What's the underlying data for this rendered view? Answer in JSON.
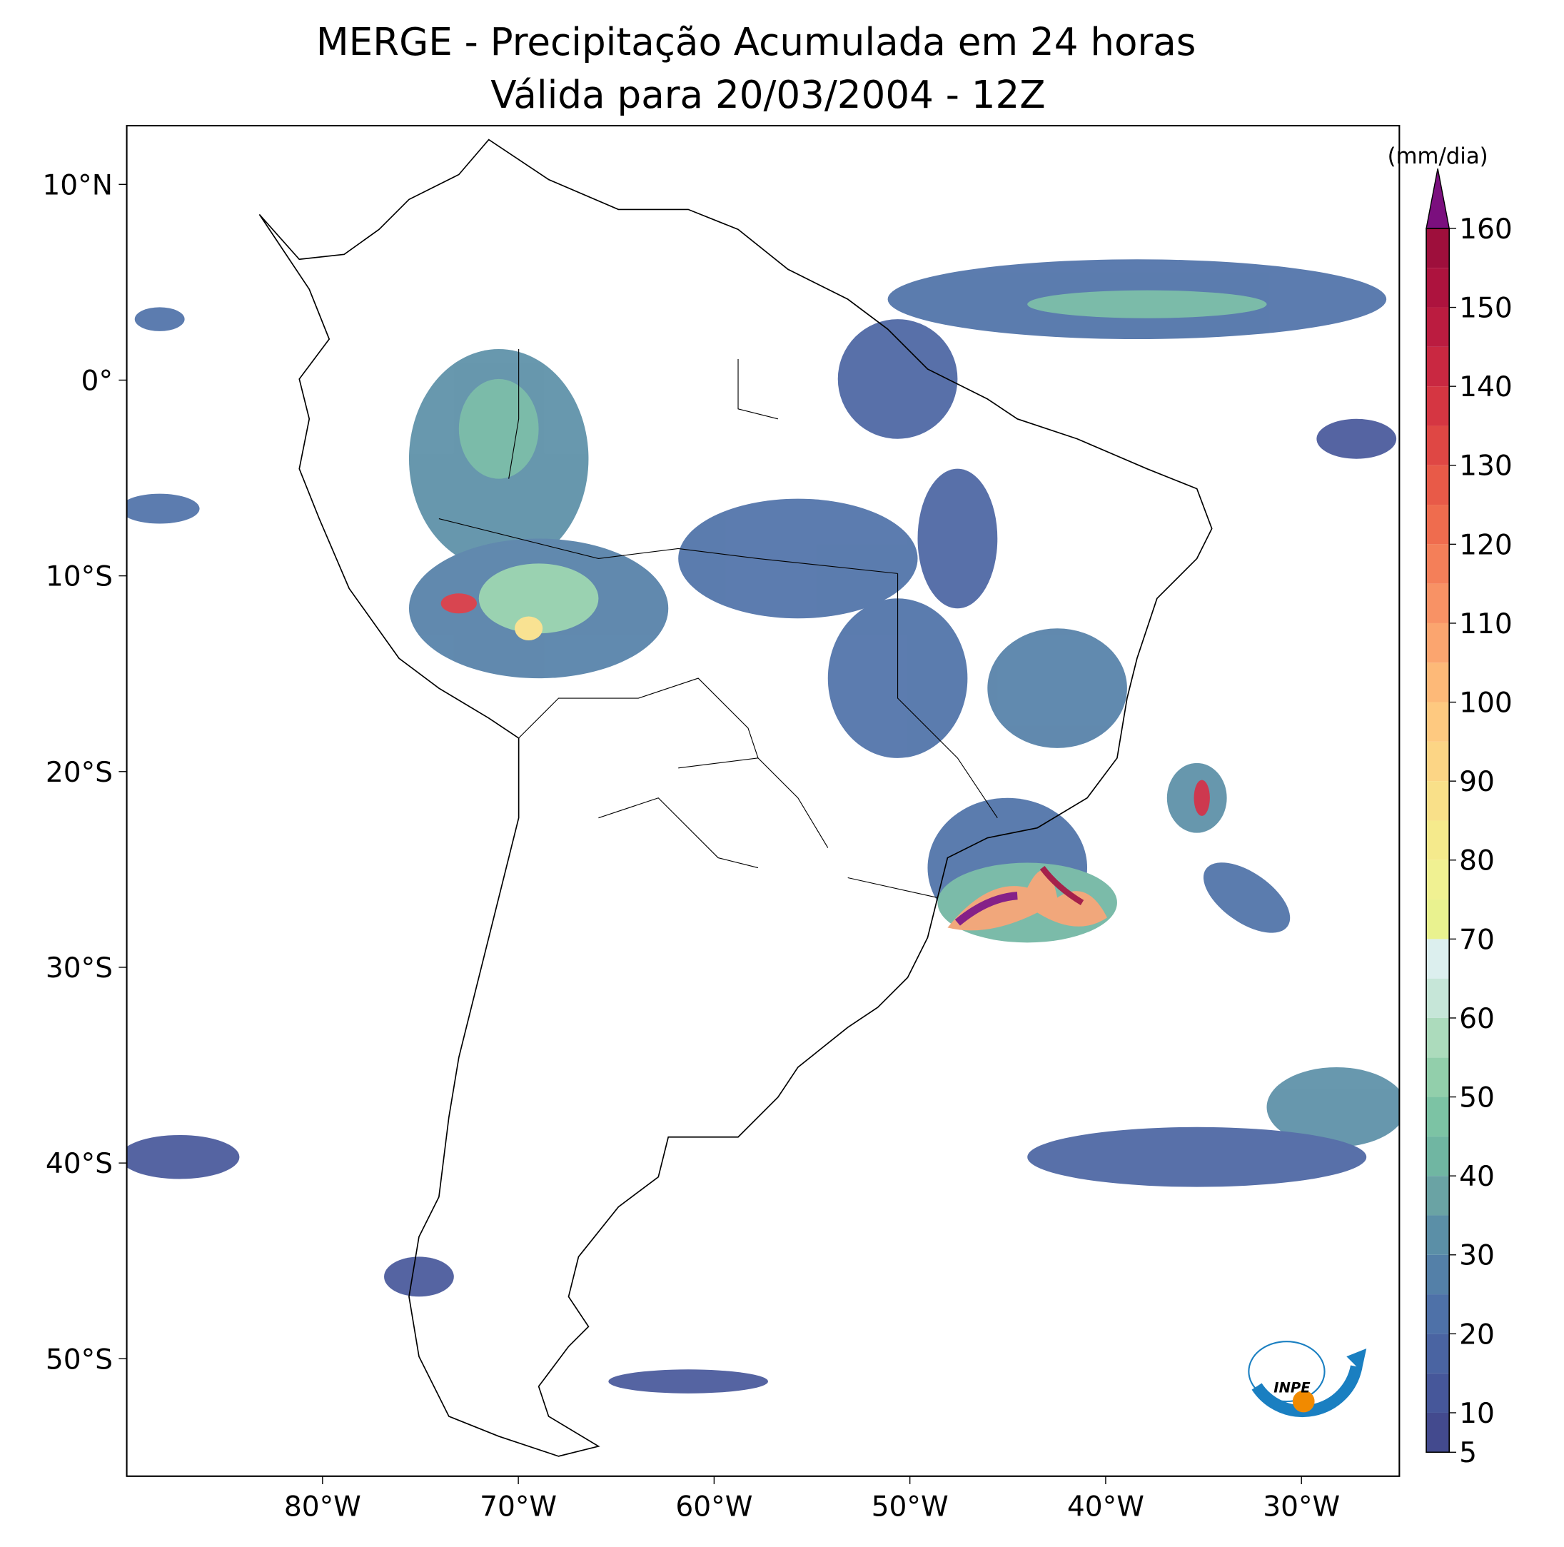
{
  "map": {
    "title": "MERGE - Precipitação Acumulada em 24 horas",
    "subtitle": "Válida para 20/03/2004 - 12Z",
    "xlim": [
      -90,
      -25
    ],
    "ylim": [
      -56,
      13
    ],
    "xticks": [
      {
        "value": -80,
        "label": "80°W"
      },
      {
        "value": -70,
        "label": "70°W"
      },
      {
        "value": -60,
        "label": "60°W"
      },
      {
        "value": -50,
        "label": "50°W"
      },
      {
        "value": -40,
        "label": "40°W"
      },
      {
        "value": -30,
        "label": "30°W"
      }
    ],
    "yticks": [
      {
        "value": 10,
        "label": "10°N"
      },
      {
        "value": 0,
        "label": "0°"
      },
      {
        "value": -10,
        "label": "10°S"
      },
      {
        "value": -20,
        "label": "20°S"
      },
      {
        "value": -30,
        "label": "30°S"
      },
      {
        "value": -40,
        "label": "40°S"
      },
      {
        "value": -50,
        "label": "50°S"
      }
    ],
    "colorbar": {
      "unit": "(mm/dia)",
      "levels": [
        5,
        10,
        15,
        20,
        25,
        30,
        35,
        40,
        45,
        50,
        55,
        60,
        65,
        70,
        75,
        80,
        85,
        90,
        95,
        100,
        105,
        110,
        115,
        120,
        125,
        130,
        135,
        140,
        145,
        150,
        155,
        160
      ],
      "colors": [
        "#434a8e",
        "#46579a",
        "#4a64a2",
        "#4e71a8",
        "#5480a8",
        "#5b8fa7",
        "#6aa3a4",
        "#70b6a2",
        "#7cc3a4",
        "#92cfab",
        "#acdbbc",
        "#c6e6d8",
        "#dcefee",
        "#e9f28f",
        "#f0f192",
        "#f5ea8c",
        "#f9e089",
        "#fcd585",
        "#fec980",
        "#fdb978",
        "#fba56f",
        "#f89265",
        "#f47f59",
        "#ef6c4e",
        "#e85a48",
        "#df4744",
        "#d53642",
        "#c92841",
        "#bb1c40",
        "#ad133e",
        "#9e0f3c"
      ],
      "extend_color": "#7b0f7e",
      "ticks": [
        5,
        10,
        20,
        30,
        40,
        50,
        60,
        70,
        80,
        90,
        100,
        110,
        120,
        130,
        140,
        150,
        160
      ]
    },
    "logo": "INPE"
  }
}
